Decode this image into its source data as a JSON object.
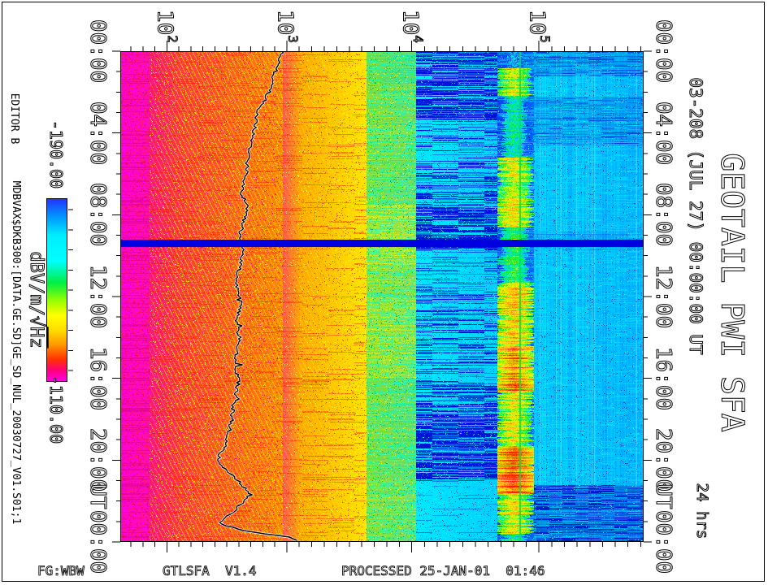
{
  "title_block": {
    "title": "GEOTAIL PWI SFA",
    "subtitle": "03-208 (JUL 27) 00:00:00 UT",
    "duration": "24 hrs"
  },
  "annotations": {
    "editor": "EDITOR B",
    "file_path": "MDBVAX$DKB300:[DATA.GE.SD]GE_SD_NUL_20030727_V01.S01;1"
  },
  "footer": {
    "receiver": "FG:WBW",
    "program": "GTLSFA",
    "version": "V1.4",
    "processed": "PROCESSED 25-JAN-01  01:46"
  },
  "colorbar": {
    "max_label": "-190.00",
    "min_label": "-110.00",
    "unit": "dBV/m/√Hz",
    "unit_prefix": "dBV/m/√",
    "unit_root": "Hz",
    "gradient": [
      {
        "p": 0.0,
        "c": "#2233ff"
      },
      {
        "p": 0.1,
        "c": "#0099ff"
      },
      {
        "p": 0.2,
        "c": "#00eeff"
      },
      {
        "p": 0.34,
        "c": "#00ffff"
      },
      {
        "p": 0.46,
        "c": "#00ee44"
      },
      {
        "p": 0.56,
        "c": "#99ff00"
      },
      {
        "p": 0.64,
        "c": "#ffff00"
      },
      {
        "p": 0.72,
        "c": "#ffdd00"
      },
      {
        "p": 0.8,
        "c": "#ff9900"
      },
      {
        "p": 0.88,
        "c": "#ff3300"
      },
      {
        "p": 0.94,
        "c": "#ff0077"
      },
      {
        "p": 1.0,
        "c": "#ff00e6"
      }
    ]
  },
  "chart_data": {
    "type": "heatmap",
    "description": "24-hour GEOTAIL Plasma Wave Instrument Sweep Frequency Analyzer spectrogram, frequency (log, ~100 Hz - 700 kHz) vs time (00:00-24:00 UT, 2003 day 208 = JUL 27), intensity in dBV/m/sqrt(Hz) from -190 (blue) to -110 (magenta)",
    "x_axis": {
      "scale": "log",
      "unit": "Hz",
      "ticks": [
        {
          "base": "10",
          "exp": "2",
          "frac": 0.089
        },
        {
          "base": "10",
          "exp": "3",
          "frac": 0.318
        },
        {
          "base": "10",
          "exp": "4",
          "frac": 0.557
        },
        {
          "base": "10",
          "exp": "5",
          "frac": 0.8
        }
      ]
    },
    "y_axis": {
      "unit": "UT",
      "tick_hours": [
        0,
        4,
        8,
        12,
        16,
        20,
        24
      ],
      "tick_labels": [
        "00:00",
        "04:00",
        "08:00",
        "12:00",
        "16:00",
        "20:00",
        "00:00"
      ],
      "minor_step_hours": 1
    },
    "intensity_scale": {
      "min": -190.0,
      "max": -110.0,
      "unit": "dBV/m/√Hz"
    },
    "gap": {
      "hours": [
        9.22,
        9.58
      ],
      "color": "#0000e0"
    },
    "green_line": {
      "frac": 0.764,
      "color": "#00e050"
    },
    "bands": [
      {
        "role": "magenta",
        "x": [
          0.0,
          0.055
        ],
        "base": [
          "#ff00d4",
          "#ff10a8"
        ],
        "speckle": [
          "#ff2233",
          "#ff00ff",
          "#dd0077"
        ],
        "density": 0.22
      },
      {
        "role": "hatch",
        "x": [
          0.055,
          0.31
        ],
        "base": [
          "#ff2255",
          "#ff8800"
        ],
        "speckle": [
          "#ffcc00",
          "#ff0099",
          "#ff3300",
          "#ffee00"
        ],
        "density": 0.3
      },
      {
        "role": "hatch",
        "x": [
          0.31,
          0.47
        ],
        "base": [
          "#ff9900",
          "#ffe600"
        ],
        "speckle": [
          "#ff3300",
          "#ffff33",
          "#ff8800"
        ],
        "density": 0.22
      },
      {
        "role": "variable",
        "x": [
          0.47,
          0.565
        ],
        "base": [
          "#33d86a",
          "#00d8c0"
        ],
        "speckle": [
          "#00ffcc",
          "#66ee00",
          "#ffff00",
          "#00bb66"
        ],
        "density": 0.45,
        "profile": [
          [
            0,
            1.5,
            0.3
          ],
          [
            1.5,
            7.5,
            0.4
          ],
          [
            7.5,
            10.5,
            0.62
          ],
          [
            10.5,
            12,
            0.45
          ],
          [
            12,
            16,
            0.55
          ],
          [
            16,
            21,
            0.35
          ],
          [
            21,
            24,
            0.42
          ]
        ]
      },
      {
        "role": "bluepatch",
        "x": [
          0.565,
          0.72
        ],
        "base": [
          "#00e8ff",
          "#00d0ff"
        ],
        "speckle": [
          "#0044ee",
          "#00ffff",
          "#0099ff"
        ],
        "density": 0.35,
        "blue": "#0011d8",
        "profile": [
          [
            0,
            3.3,
            0.8
          ],
          [
            3.3,
            5.5,
            0.5
          ],
          [
            5.5,
            7.5,
            0.55
          ],
          [
            7.5,
            9.7,
            0.78
          ],
          [
            9.7,
            11.5,
            0.45
          ],
          [
            11.5,
            16.3,
            0.5
          ],
          [
            16.3,
            21,
            0.82
          ],
          [
            21,
            24,
            0.3
          ]
        ]
      },
      {
        "role": "ribbon",
        "x": [
          0.72,
          0.79
        ],
        "base": [
          "#0044ee",
          "#0066ff"
        ],
        "speckle": [
          "#00ccff",
          "#0000bb",
          "#00eeff"
        ],
        "density": 0.4,
        "center": 0.752,
        "profile": [
          [
            0,
            0.8,
            0.1
          ],
          [
            0.8,
            2.2,
            0.5
          ],
          [
            2.2,
            5.2,
            0.25
          ],
          [
            5.2,
            8.6,
            0.55
          ],
          [
            8.6,
            11.3,
            0.35
          ],
          [
            11.3,
            14.4,
            0.62
          ],
          [
            14.4,
            16.6,
            0.8
          ],
          [
            16.6,
            19.3,
            0.55
          ],
          [
            19.3,
            21.6,
            0.85
          ],
          [
            21.6,
            23.6,
            0.55
          ],
          [
            23.6,
            24,
            0.3
          ]
        ],
        "ramp": [
          "#0044ee",
          "#00ddff",
          "#00ee44",
          "#ddff00",
          "#ffcc00",
          "#ff7700",
          "#ff2200"
        ]
      },
      {
        "role": "stripes",
        "x": [
          0.79,
          1.0
        ],
        "base": [
          "#00e2ff",
          "#00c8ff"
        ],
        "speckle": [
          "#00ffff",
          "#0088ff",
          "#0033cc"
        ],
        "density": 0.3,
        "blue": "#0019cc",
        "default": 0.12,
        "profile": [
          [
            0,
            1.2,
            0.5
          ],
          [
            2.2,
            4.6,
            0.45
          ],
          [
            8.8,
            9.7,
            0.3
          ],
          [
            21.2,
            24,
            0.8
          ]
        ]
      }
    ],
    "trace": {
      "name": "overlaid spectral peak trace",
      "points": [
        [
          0,
          0.31
        ],
        [
          1,
          0.296
        ],
        [
          2,
          0.284
        ],
        [
          3,
          0.262
        ],
        [
          4,
          0.254
        ],
        [
          5,
          0.245
        ],
        [
          6,
          0.24
        ],
        [
          7,
          0.233
        ],
        [
          7.6,
          0.243
        ],
        [
          8.3,
          0.236
        ],
        [
          9,
          0.228
        ],
        [
          9.6,
          0.235
        ],
        [
          10.5,
          0.228
        ],
        [
          11.5,
          0.222
        ],
        [
          12.3,
          0.23
        ],
        [
          13.2,
          0.222
        ],
        [
          14.2,
          0.227
        ],
        [
          15.2,
          0.219
        ],
        [
          16.2,
          0.226
        ],
        [
          17.2,
          0.217
        ],
        [
          18.2,
          0.212
        ],
        [
          19.2,
          0.201
        ],
        [
          20,
          0.186
        ],
        [
          20.6,
          0.205
        ],
        [
          21.1,
          0.23
        ],
        [
          21.7,
          0.247
        ],
        [
          22.2,
          0.228
        ],
        [
          22.7,
          0.208
        ],
        [
          23.1,
          0.19
        ],
        [
          23.45,
          0.238
        ],
        [
          23.75,
          0.32
        ],
        [
          24,
          0.345
        ]
      ]
    }
  }
}
